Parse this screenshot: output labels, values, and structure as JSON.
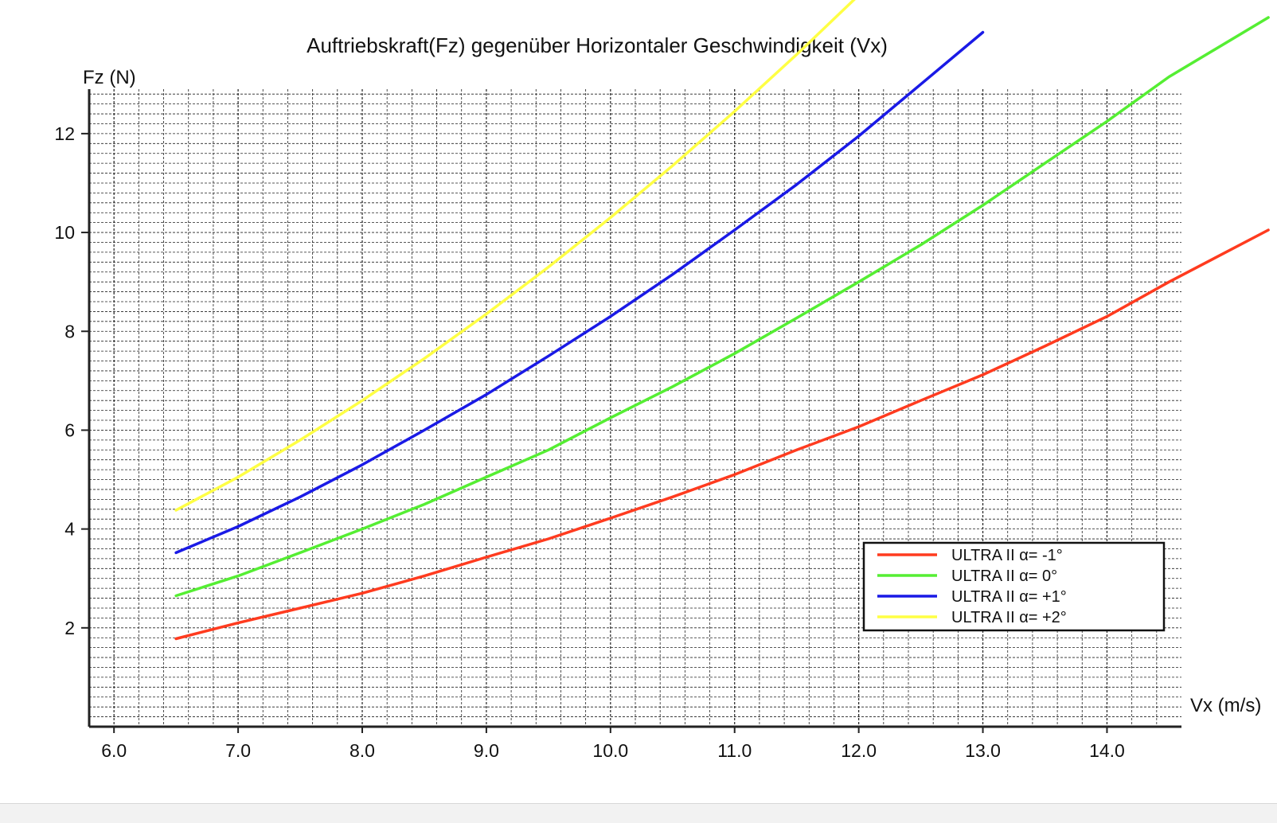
{
  "chart_data": {
    "type": "line",
    "title": "Auftriebskraft(Fz) gegenüber Horizontaler Geschwindigkeit (Vx)",
    "xlabel": "Vx (m/s)",
    "ylabel": "Fz (N)",
    "xlim": [
      5.8,
      14.6
    ],
    "ylim": [
      0.0,
      12.9
    ],
    "xticks": [
      "6.0",
      "7.0",
      "8.0",
      "9.0",
      "10.0",
      "11.0",
      "12.0",
      "13.0",
      "14.0"
    ],
    "yticks": [
      "2",
      "4",
      "6",
      "8",
      "10",
      "12"
    ],
    "grid": true,
    "legend_position": "bottom-right",
    "series": [
      {
        "name": "ULTRA II α= -1°",
        "color": "#ff3b1f",
        "x": [
          6.5,
          7.0,
          7.5,
          8.0,
          8.5,
          9.0,
          9.5,
          10.0,
          10.5,
          11.0,
          11.5,
          12.0,
          12.5,
          13.0,
          13.5,
          14.0,
          14.5,
          15.3
        ],
        "y": [
          1.78,
          2.1,
          2.4,
          2.7,
          3.05,
          3.43,
          3.8,
          4.22,
          4.65,
          5.1,
          5.6,
          6.07,
          6.6,
          7.12,
          7.7,
          8.3,
          9.0,
          10.05
        ]
      },
      {
        "name": "ULTRA II α= 0°",
        "color": "#55ee33",
        "x": [
          6.5,
          7.0,
          7.5,
          8.0,
          8.5,
          9.0,
          9.5,
          10.0,
          10.5,
          11.0,
          11.5,
          12.0,
          12.5,
          13.0,
          13.5,
          14.0,
          14.5,
          15.3
        ],
        "y": [
          2.65,
          3.05,
          3.52,
          4.0,
          4.5,
          5.05,
          5.6,
          6.25,
          6.88,
          7.55,
          8.27,
          9.0,
          9.75,
          10.55,
          11.4,
          12.25,
          13.15,
          14.35
        ]
      },
      {
        "name": "ULTRA II α= +1°",
        "color": "#1a1ae6",
        "x": [
          6.5,
          7.0,
          7.5,
          8.0,
          8.5,
          9.0,
          9.5,
          10.0,
          10.5,
          11.0,
          11.5,
          12.0,
          12.5,
          13.0
        ],
        "y": [
          3.52,
          4.05,
          4.65,
          5.3,
          6.0,
          6.72,
          7.5,
          8.3,
          9.15,
          10.05,
          10.97,
          11.95,
          13.0,
          14.05
        ]
      },
      {
        "name": "ULTRA II α= +2°",
        "color": "#ffff44",
        "x": [
          6.5,
          7.0,
          7.5,
          8.0,
          8.5,
          9.0,
          9.5,
          10.0,
          10.5,
          11.0,
          11.5,
          12.0
        ],
        "y": [
          4.38,
          5.05,
          5.8,
          6.6,
          7.45,
          8.35,
          9.3,
          10.3,
          11.35,
          12.45,
          13.6,
          14.8
        ]
      }
    ]
  }
}
